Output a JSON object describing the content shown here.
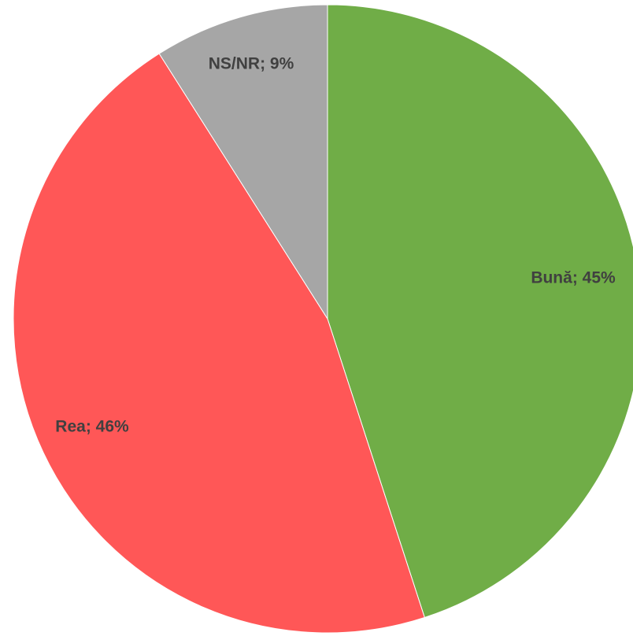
{
  "chart_data": {
    "type": "pie",
    "title": "",
    "start_angle_deg": 0,
    "direction": "clockwise",
    "slices": [
      {
        "name": "Bună",
        "value": 45,
        "label": "Bună; 45%",
        "color": "#70AD47"
      },
      {
        "name": "Rea",
        "value": 46,
        "label": "Rea; 46%",
        "color": "#FF5757"
      },
      {
        "name": "NS/NR",
        "value": 9,
        "label": "NS/NR; 9%",
        "color": "#A6A6A6"
      }
    ],
    "legend": "none"
  }
}
